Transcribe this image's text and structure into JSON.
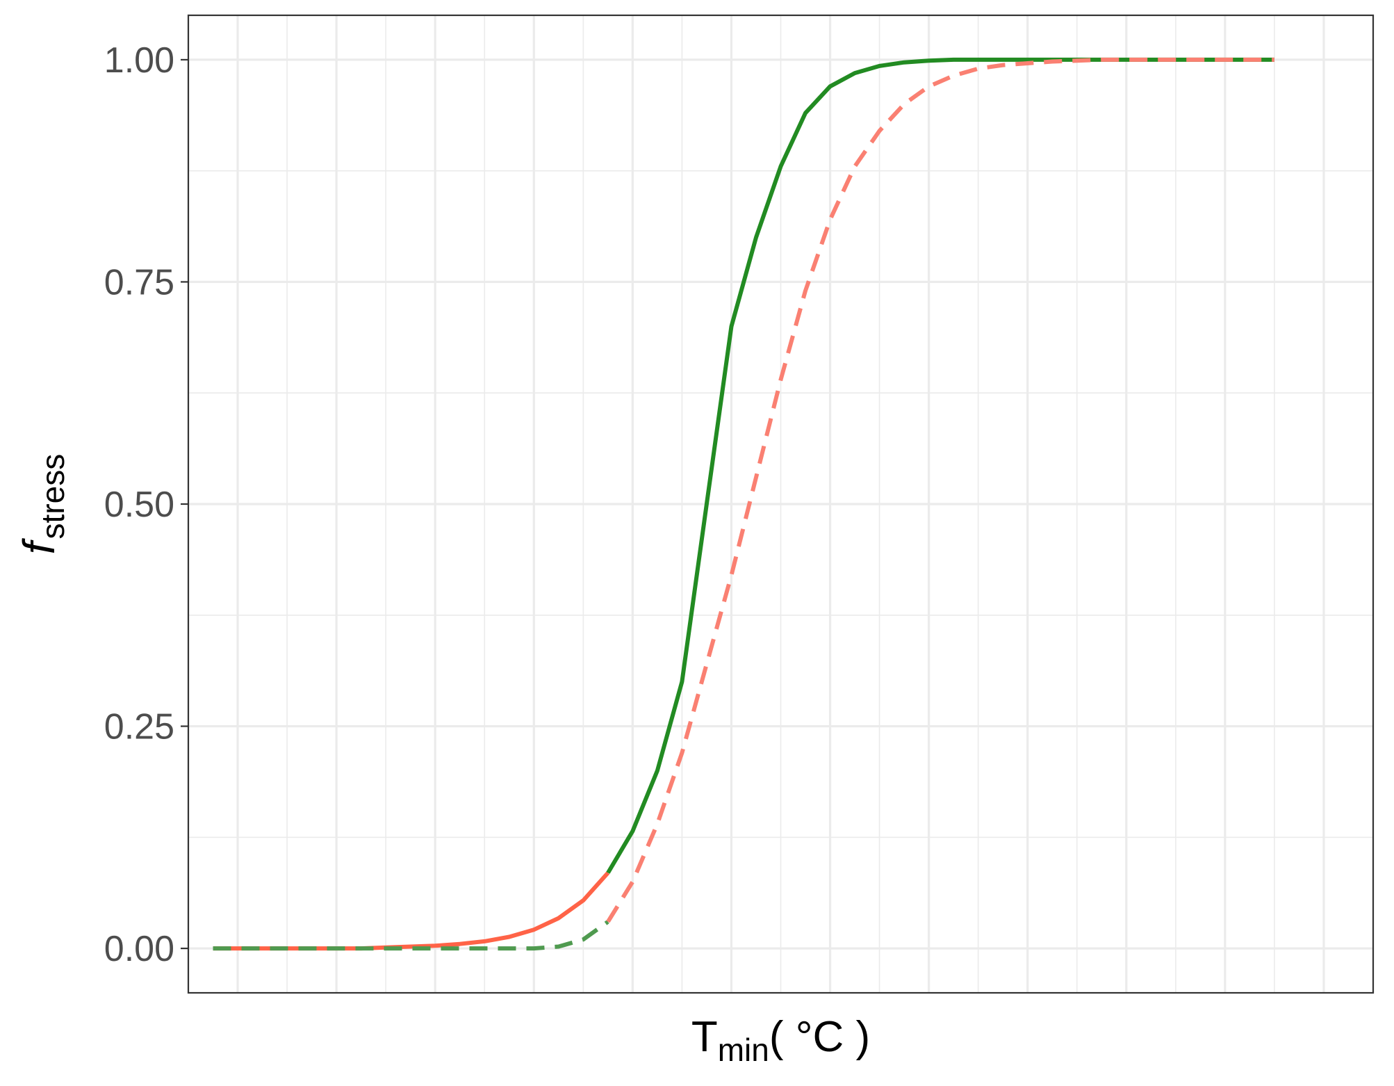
{
  "colors": {
    "background": "#ffffff",
    "grid": "#ebebeb",
    "panel_border": "#333333",
    "tick_label": "#4d4d4d",
    "green_solid": "#228b22",
    "green_dashed": "#4f9a4f",
    "red_solid": "#ff6347",
    "red_dashed": "#fa8072"
  },
  "chart_data": {
    "type": "line",
    "xlabel": {
      "main": "T",
      "sub": "min",
      "rest": "( °C )"
    },
    "ylabel": {
      "main": "f",
      "sub": "stress"
    },
    "xlim": [
      -10,
      38
    ],
    "ylim": [
      -0.05,
      1.05
    ],
    "x_tick_labels": [],
    "y_ticks": [
      0,
      0.25,
      0.5,
      0.75,
      1
    ],
    "y_tick_labels": [
      "0.00",
      "0.25",
      "0.50",
      "0.75",
      "1.00"
    ],
    "grid": true,
    "legend": "none",
    "x": [
      -9,
      -8,
      -7,
      -6,
      -5,
      -4,
      -3,
      -2,
      -1,
      0,
      1,
      2,
      3,
      4,
      5,
      6,
      7,
      8,
      9,
      10,
      11,
      12,
      13,
      14,
      15,
      16,
      17,
      18,
      19,
      20,
      21,
      22,
      23,
      24,
      25,
      26,
      27,
      28,
      29,
      30,
      31,
      32,
      33,
      34
    ],
    "series": [
      {
        "style": "solid",
        "color_low": "#ff6347",
        "color_high": "#228b22",
        "switch_x": 7,
        "values": [
          0.0,
          0.0,
          0.0,
          0.0,
          0.0,
          0.0,
          0.0,
          0.001,
          0.002,
          0.003,
          0.005,
          0.008,
          0.013,
          0.021,
          0.034,
          0.054,
          0.085,
          0.132,
          0.2,
          0.3,
          0.5,
          0.7,
          0.8,
          0.88,
          0.94,
          0.97,
          0.985,
          0.993,
          0.997,
          0.999,
          1.0,
          1.0,
          1.0,
          1.0,
          1.0,
          1.0,
          1.0,
          1.0,
          1.0,
          1.0,
          1.0,
          1.0,
          1.0,
          1.0
        ]
      },
      {
        "style": "dashed",
        "color_low": "#4f9a4f",
        "color_high": "#fa8072",
        "switch_x": 7,
        "values": [
          0.0,
          0.0,
          0.0,
          0.0,
          0.0,
          0.0,
          0.0,
          0.0,
          0.0,
          0.0,
          0.0,
          0.0,
          0.0,
          0.0,
          0.002,
          0.01,
          0.03,
          0.075,
          0.14,
          0.22,
          0.32,
          0.42,
          0.53,
          0.64,
          0.74,
          0.82,
          0.88,
          0.92,
          0.95,
          0.97,
          0.982,
          0.99,
          0.994,
          0.996,
          0.998,
          0.999,
          1.0,
          1.0,
          1.0,
          1.0,
          1.0,
          1.0,
          1.0,
          1.0
        ]
      }
    ]
  }
}
